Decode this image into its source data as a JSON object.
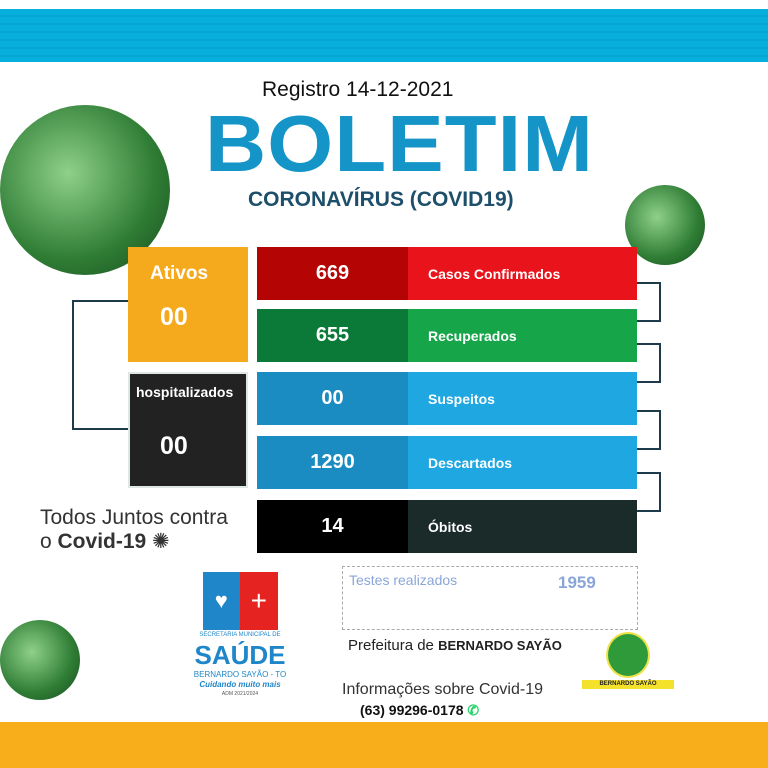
{
  "header": {
    "registro": "Registro 14-12-2021",
    "title": "BOLETIM",
    "subtitle": "CORONAVÍRUS (COVID19)"
  },
  "ativos": {
    "label": "Ativos",
    "value": "00"
  },
  "hospitalizados": {
    "label": "hospitalizados",
    "value": "00"
  },
  "stats": [
    {
      "value": "669",
      "label": "Casos Confirmados",
      "dark": "#b40404",
      "light": "#e8131b"
    },
    {
      "value": "655",
      "label": "Recuperados",
      "dark": "#0b7a38",
      "light": "#17a54a"
    },
    {
      "value": "00",
      "label": "Suspeitos",
      "dark": "#1a8cc1",
      "light": "#1ea7e1"
    },
    {
      "value": "1290",
      "label": "Descartados",
      "dark": "#1a8cc1",
      "light": "#1ea7e1"
    },
    {
      "value": "14",
      "label": "Óbitos",
      "dark": "#000000",
      "light": "#1b2b2a"
    }
  ],
  "slogan": {
    "line1": "Todos Juntos contra",
    "line2_prefix": "o ",
    "line2_bold": "Covid-19"
  },
  "testes": {
    "label": "Testes realizados",
    "value": "1959"
  },
  "prefeitura": {
    "prefix": "Prefeitura de ",
    "name": "BERNARDO SAYÃO"
  },
  "info": {
    "label": "Informações sobre Covid-19",
    "phone": "(63) 99296-0178"
  },
  "saude_logo": {
    "line1": "SECRETARIA MUNICIPAL DE",
    "line2": "SAÚDE",
    "line3": "BERNARDO SAYÃO - TO",
    "line4": "Cuidando muito mais",
    "line5": "ADM 2021/2024"
  },
  "brasao": {
    "text": "BERNARDO SAYÃO"
  }
}
